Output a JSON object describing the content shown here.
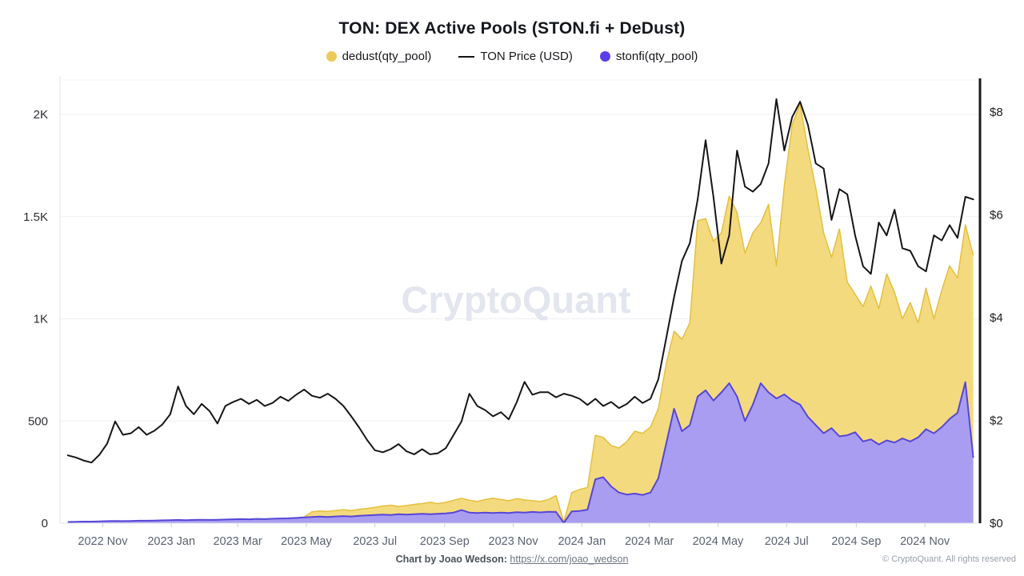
{
  "header": {
    "title": "TON: DEX Active Pools (STON.fi + DeDust)"
  },
  "legend": [
    {
      "label": "dedust(qty_pool)",
      "marker": "dot",
      "color": "#ecc95a"
    },
    {
      "label": "TON Price (USD)",
      "marker": "line",
      "color": "#141414"
    },
    {
      "label": "stonfi(qty_pool)",
      "marker": "dot",
      "color": "#5b3ee8"
    }
  ],
  "watermark": {
    "text": "CryptoQuant",
    "color": "#e3e6ef"
  },
  "footer": {
    "credit_bold": "Chart by Joao Wedson:",
    "credit_link": "https://x.com/joao_wedson",
    "copyright": "© CryptoQuant. All rights reserved"
  },
  "chart_data": {
    "type": "area+line",
    "title": "TON: DEX Active Pools (STON.fi + DeDust)",
    "grid": true,
    "legend_position": "top",
    "x_axis": {
      "start": "2022-09-24",
      "end": "2024-12-20",
      "labels": [
        {
          "label": "2022 Nov",
          "date": "2022-11-01"
        },
        {
          "label": "2023 Jan",
          "date": "2023-01-01"
        },
        {
          "label": "2023 Mar",
          "date": "2023-03-01"
        },
        {
          "label": "2023 May",
          "date": "2023-05-01"
        },
        {
          "label": "2023 Jul",
          "date": "2023-07-01"
        },
        {
          "label": "2023 Sep",
          "date": "2023-09-01"
        },
        {
          "label": "2023 Nov",
          "date": "2023-11-01"
        },
        {
          "label": "2024 Jan",
          "date": "2024-01-01"
        },
        {
          "label": "2024 Mar",
          "date": "2024-03-01"
        },
        {
          "label": "2024 May",
          "date": "2024-05-01"
        },
        {
          "label": "2024 Jul",
          "date": "2024-07-01"
        },
        {
          "label": "2024 Sep",
          "date": "2024-09-01"
        },
        {
          "label": "2024 Nov",
          "date": "2024-11-01"
        }
      ]
    },
    "left_axis": {
      "ticks": [
        "0",
        "500",
        "1K",
        "1.5K",
        "2K"
      ],
      "values": [
        0,
        500,
        1000,
        1500,
        2000
      ],
      "range": [
        0,
        2170
      ]
    },
    "right_axis": {
      "ticks": [
        "$0",
        "$2",
        "$4",
        "$6",
        "$8"
      ],
      "values": [
        0,
        2,
        4,
        6,
        8
      ],
      "range": [
        0,
        8.35
      ]
    },
    "series_start": "2022-10-01",
    "step_days": 7,
    "series": [
      {
        "name": "dedust(qty_pool)",
        "type": "area",
        "axis": "left",
        "fill": "#f4da7e",
        "stroke": "#e4bf3e",
        "values": [
          null,
          null,
          null,
          null,
          null,
          null,
          null,
          null,
          null,
          null,
          null,
          null,
          null,
          null,
          null,
          null,
          null,
          null,
          null,
          null,
          null,
          null,
          null,
          null,
          null,
          null,
          null,
          null,
          18,
          25,
          30,
          56,
          60,
          58,
          62,
          66,
          62,
          68,
          72,
          78,
          84,
          88,
          82,
          86,
          92,
          96,
          102,
          96,
          102,
          112,
          122,
          112,
          106,
          116,
          122,
          116,
          110,
          120,
          114,
          110,
          106,
          115,
          135,
          5,
          150,
          165,
          175,
          430,
          420,
          380,
          368,
          400,
          450,
          440,
          470,
          560,
          780,
          940,
          900,
          980,
          1480,
          1490,
          1380,
          1420,
          1600,
          1520,
          1320,
          1420,
          1470,
          1560,
          1260,
          1650,
          1950,
          2050,
          1830,
          1640,
          1420,
          1300,
          1440,
          1180,
          1120,
          1060,
          1160,
          1050,
          1220,
          1130,
          1000,
          1080,
          980,
          1150,
          1000,
          1140,
          1260,
          1200,
          1460,
          1310
        ]
      },
      {
        "name": "stonfi(qty_pool)",
        "type": "area",
        "axis": "left",
        "fill": "#a89df1",
        "stroke": "#5646d6",
        "values": [
          6,
          7,
          8,
          8,
          9,
          10,
          11,
          10,
          11,
          12,
          12,
          13,
          14,
          15,
          16,
          15,
          16,
          17,
          16,
          17,
          18,
          19,
          20,
          19,
          21,
          20,
          22,
          23,
          24,
          26,
          28,
          30,
          32,
          30,
          33,
          35,
          33,
          36,
          38,
          40,
          42,
          40,
          44,
          42,
          44,
          46,
          44,
          46,
          48,
          52,
          64,
          52,
          50,
          52,
          50,
          52,
          50,
          54,
          52,
          55,
          53,
          56,
          55,
          2,
          58,
          60,
          66,
          215,
          225,
          180,
          150,
          140,
          145,
          138,
          150,
          220,
          390,
          560,
          450,
          480,
          620,
          650,
          600,
          640,
          685,
          620,
          500,
          580,
          685,
          640,
          610,
          630,
          600,
          580,
          520,
          480,
          440,
          465,
          425,
          430,
          445,
          400,
          410,
          385,
          405,
          395,
          415,
          400,
          420,
          460,
          440,
          470,
          510,
          540,
          690,
          320
        ]
      },
      {
        "name": "TON Price (USD)",
        "type": "line",
        "axis": "right",
        "stroke": "#161616",
        "values": [
          1.32,
          1.28,
          1.22,
          1.18,
          1.33,
          1.55,
          1.98,
          1.72,
          1.75,
          1.87,
          1.72,
          1.8,
          1.92,
          2.12,
          2.66,
          2.28,
          2.12,
          2.32,
          2.18,
          1.94,
          2.28,
          2.36,
          2.42,
          2.32,
          2.4,
          2.28,
          2.34,
          2.46,
          2.38,
          2.5,
          2.6,
          2.48,
          2.44,
          2.52,
          2.42,
          2.28,
          2.08,
          1.86,
          1.62,
          1.42,
          1.38,
          1.44,
          1.54,
          1.4,
          1.34,
          1.44,
          1.34,
          1.36,
          1.46,
          1.72,
          1.98,
          2.52,
          2.28,
          2.2,
          2.08,
          2.16,
          2.02,
          2.35,
          2.75,
          2.5,
          2.55,
          2.55,
          2.45,
          2.52,
          2.48,
          2.42,
          2.3,
          2.42,
          2.28,
          2.36,
          2.24,
          2.32,
          2.46,
          2.34,
          2.42,
          2.8,
          3.6,
          4.4,
          5.1,
          5.45,
          6.3,
          7.45,
          6.35,
          5.05,
          5.6,
          7.25,
          6.55,
          6.45,
          6.6,
          7.0,
          8.25,
          7.25,
          7.9,
          8.2,
          7.75,
          7.0,
          6.9,
          5.9,
          6.5,
          6.4,
          5.6,
          5.0,
          4.85,
          5.85,
          5.6,
          6.1,
          5.35,
          5.3,
          5.0,
          4.9,
          5.6,
          5.5,
          5.8,
          5.55,
          6.35,
          6.3
        ]
      }
    ]
  }
}
